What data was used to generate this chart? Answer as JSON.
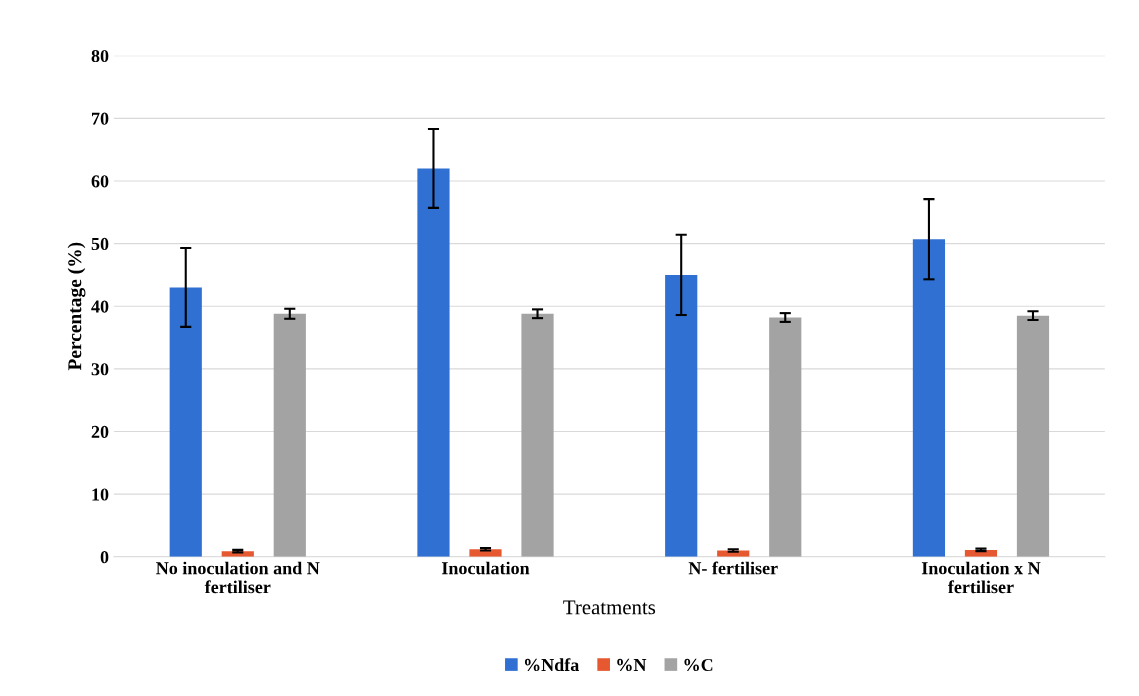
{
  "chart_data": {
    "type": "bar",
    "xlabel": "Treatments",
    "ylabel": "Percentage (%)",
    "categories": [
      "No inoculation and N\nfertiliser",
      "Inoculation",
      "N- fertiliser",
      "Inoculation x N\nfertiliser"
    ],
    "series": [
      {
        "name": "%Ndfa",
        "color": "#2f70d2",
        "values": [
          43,
          62,
          45,
          50.7
        ],
        "errors": [
          6.3,
          6.3,
          6.4,
          6.4
        ]
      },
      {
        "name": "%N",
        "color": "#e6582f",
        "values": [
          0.9,
          1.2,
          1.0,
          1.1
        ],
        "errors": [
          0.2,
          0.2,
          0.2,
          0.2
        ]
      },
      {
        "name": "%C",
        "color": "#a3a3a3",
        "values": [
          38.8,
          38.8,
          38.2,
          38.5
        ],
        "errors": [
          0.8,
          0.7,
          0.7,
          0.7
        ]
      }
    ],
    "ylim": [
      0,
      80
    ],
    "yticks": [
      0,
      10,
      20,
      30,
      40,
      50,
      60,
      70,
      80
    ],
    "grid": "y",
    "legend": "bottom"
  }
}
